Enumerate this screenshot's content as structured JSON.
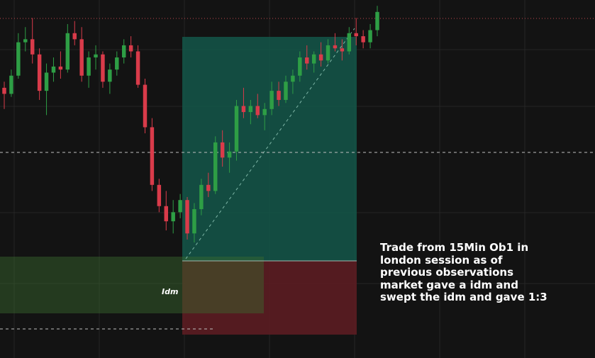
{
  "chart_data": {
    "type": "candlestick",
    "title": "",
    "annotation_lines": [
      "Trade from 15Min Ob1 in",
      "london session as of",
      "previous observations",
      "market gave a idm and",
      "swept the idm and gave 1:3"
    ],
    "labels": {
      "idm": "Idm"
    },
    "colors": {
      "background": "#131313",
      "bull": "#2e9e45",
      "bear": "#d93b4a",
      "grid": "#262626",
      "target_zone": "#14574a",
      "stop_zone": "#5c1d22",
      "order_block": "#28421f"
    },
    "price_range": [
      0,
      100
    ],
    "candles": [
      [
        72,
        74,
        65,
        70
      ],
      [
        70,
        78,
        69,
        76
      ],
      [
        76,
        90,
        75,
        87
      ],
      [
        87,
        92,
        84,
        88
      ],
      [
        88,
        95,
        80,
        83
      ],
      [
        83,
        85,
        68,
        71
      ],
      [
        71,
        80,
        63,
        77
      ],
      [
        77,
        82,
        74,
        79
      ],
      [
        79,
        84,
        75,
        78
      ],
      [
        78,
        93,
        77,
        90
      ],
      [
        90,
        94,
        86,
        88
      ],
      [
        88,
        92,
        74,
        76
      ],
      [
        76,
        84,
        72,
        82
      ],
      [
        82,
        86,
        78,
        83
      ],
      [
        83,
        84,
        72,
        74
      ],
      [
        74,
        80,
        70,
        78
      ],
      [
        78,
        84,
        76,
        82
      ],
      [
        82,
        88,
        80,
        86
      ],
      [
        86,
        89,
        82,
        84
      ],
      [
        84,
        86,
        72,
        73
      ],
      [
        73,
        75,
        57,
        59
      ],
      [
        59,
        62,
        38,
        40
      ],
      [
        40,
        42,
        31,
        33
      ],
      [
        33,
        38,
        25,
        28
      ],
      [
        28,
        35,
        24,
        31
      ],
      [
        31,
        37,
        29,
        35
      ],
      [
        35,
        36,
        22,
        24
      ],
      [
        24,
        34,
        21,
        32
      ],
      [
        32,
        42,
        30,
        40
      ],
      [
        40,
        44,
        36,
        38
      ],
      [
        38,
        56,
        37,
        54
      ],
      [
        54,
        58,
        46,
        49
      ],
      [
        49,
        54,
        44,
        51
      ],
      [
        51,
        68,
        48,
        66
      ],
      [
        66,
        72,
        62,
        64
      ],
      [
        64,
        68,
        60,
        66
      ],
      [
        66,
        70,
        62,
        63
      ],
      [
        63,
        67,
        58,
        65
      ],
      [
        65,
        74,
        63,
        71
      ],
      [
        71,
        74,
        66,
        68
      ],
      [
        68,
        76,
        67,
        74
      ],
      [
        74,
        78,
        70,
        76
      ],
      [
        76,
        84,
        74,
        82
      ],
      [
        82,
        86,
        78,
        80
      ],
      [
        80,
        84,
        77,
        83
      ],
      [
        83,
        87,
        79,
        81
      ],
      [
        81,
        88,
        80,
        86
      ],
      [
        86,
        90,
        84,
        85
      ],
      [
        85,
        88,
        81,
        84
      ],
      [
        84,
        92,
        83,
        90
      ],
      [
        90,
        95,
        86,
        89
      ],
      [
        89,
        91,
        85,
        87
      ],
      [
        87,
        93,
        85,
        91
      ],
      [
        91,
        99,
        89,
        97
      ]
    ]
  }
}
